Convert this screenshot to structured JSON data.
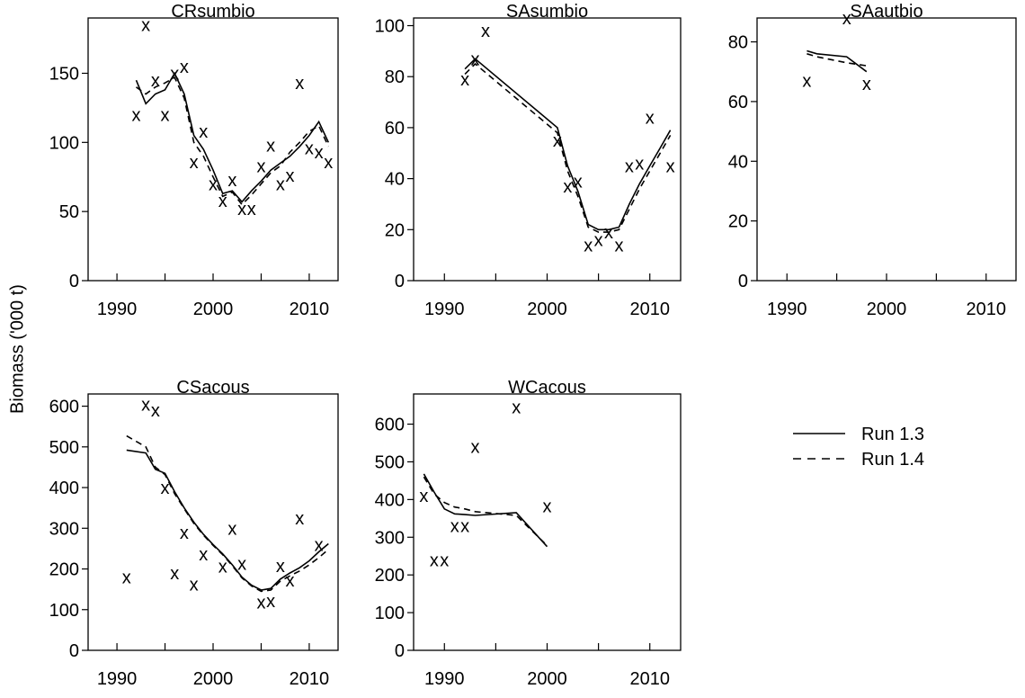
{
  "ylabel": "Biomass ('000 t)",
  "legend": {
    "placement": "right",
    "entries": [
      {
        "label": "Run 1.3",
        "style": "solid"
      },
      {
        "label": "Run 1.4",
        "style": "dashed"
      }
    ]
  },
  "chart_data": [
    {
      "type": "line",
      "title": "CRsumbio",
      "xlim": [
        1987,
        2013
      ],
      "ylim": [
        0,
        190
      ],
      "xticks": [
        1990,
        2000,
        2010
      ],
      "yticks": [
        0,
        50,
        100,
        150
      ],
      "observed": {
        "x": [
          1992,
          1993,
          1994,
          1995,
          1996,
          1997,
          1998,
          1999,
          2000,
          2001,
          2002,
          2003,
          2004,
          2005,
          2006,
          2007,
          2008,
          2009,
          2010,
          2011,
          2012
        ],
        "y": [
          120,
          185,
          145,
          120,
          150,
          155,
          86,
          108,
          70,
          58,
          73,
          52,
          52,
          83,
          98,
          70,
          76,
          143,
          96,
          93,
          86
        ]
      },
      "series": [
        {
          "name": "Run 1.3",
          "x": [
            1992,
            1993,
            1994,
            1995,
            1996,
            1997,
            1998,
            1999,
            2000,
            2001,
            2002,
            2003,
            2004,
            2005,
            2006,
            2007,
            2008,
            2009,
            2010,
            2011,
            2012
          ],
          "y": [
            145,
            128,
            135,
            138,
            150,
            135,
            105,
            95,
            80,
            63,
            65,
            57,
            65,
            72,
            80,
            85,
            90,
            97,
            105,
            115,
            100
          ]
        },
        {
          "name": "Run 1.4",
          "x": [
            1992,
            1993,
            1994,
            1995,
            1996,
            1997,
            1998,
            1999,
            2000,
            2001,
            2002,
            2003,
            2004,
            2005,
            2006,
            2007,
            2008,
            2009,
            2010,
            2011,
            2012
          ],
          "y": [
            140,
            135,
            140,
            143,
            147,
            132,
            100,
            90,
            75,
            61,
            64,
            55,
            62,
            70,
            78,
            83,
            93,
            100,
            108,
            112,
            97
          ]
        }
      ]
    },
    {
      "type": "line",
      "title": "SAsumbio",
      "xlim": [
        1987,
        2013
      ],
      "ylim": [
        0,
        103
      ],
      "xticks": [
        1990,
        2000,
        2010
      ],
      "yticks": [
        0,
        20,
        40,
        60,
        80,
        100
      ],
      "observed": {
        "x": [
          1992,
          1993,
          1994,
          2001,
          2002,
          2003,
          2004,
          2005,
          2006,
          2007,
          2008,
          2009,
          2010,
          2012
        ],
        "y": [
          79,
          87,
          98,
          55,
          37,
          39,
          14,
          16,
          19,
          14,
          45,
          46,
          64,
          45
        ]
      },
      "series": [
        {
          "name": "Run 1.3",
          "x": [
            1992,
            1993,
            2001,
            2002,
            2003,
            2004,
            2005,
            2006,
            2007,
            2008,
            2009,
            2010,
            2011,
            2012
          ],
          "y": [
            83,
            87,
            60,
            45,
            35,
            22,
            20,
            20,
            21,
            30,
            38,
            45,
            52,
            59
          ]
        },
        {
          "name": "Run 1.4",
          "x": [
            1992,
            1993,
            2001,
            2002,
            2003,
            2004,
            2005,
            2006,
            2007,
            2008,
            2009,
            2010,
            2011,
            2012
          ],
          "y": [
            81,
            85,
            58,
            43,
            33,
            21,
            19,
            19,
            20,
            28,
            36,
            43,
            50,
            57
          ]
        }
      ]
    },
    {
      "type": "line",
      "title": "SAautbio",
      "xlim": [
        1987,
        2013
      ],
      "ylim": [
        0,
        88
      ],
      "xticks": [
        1990,
        2000,
        2010
      ],
      "yticks": [
        0,
        20,
        40,
        60,
        80
      ],
      "observed": {
        "x": [
          1992,
          1996,
          1998
        ],
        "y": [
          67,
          88,
          66
        ]
      },
      "series": [
        {
          "name": "Run 1.3",
          "x": [
            1992,
            1993,
            1996,
            1998
          ],
          "y": [
            77,
            76,
            75,
            70
          ]
        },
        {
          "name": "Run 1.4",
          "x": [
            1992,
            1993,
            1996,
            1998
          ],
          "y": [
            76,
            75,
            73,
            72
          ]
        }
      ]
    },
    {
      "type": "line",
      "title": "CSacous",
      "xlim": [
        1987,
        2013
      ],
      "ylim": [
        0,
        630
      ],
      "xticks": [
        1990,
        2000,
        2010
      ],
      "yticks": [
        0,
        100,
        200,
        300,
        400,
        500,
        600
      ],
      "observed": {
        "x": [
          1991,
          1993,
          1994,
          1995,
          1996,
          1997,
          1998,
          1999,
          2001,
          2002,
          2003,
          2005,
          2006,
          2007,
          2008,
          2009,
          2011
        ],
        "y": [
          180,
          605,
          590,
          400,
          190,
          290,
          163,
          237,
          207,
          300,
          213,
          118,
          122,
          208,
          172,
          325,
          260
        ]
      },
      "series": [
        {
          "name": "Run 1.3",
          "x": [
            1991,
            1993,
            1994,
            1995,
            1996,
            1997,
            1998,
            1999,
            2000,
            2001,
            2002,
            2003,
            2004,
            2005,
            2006,
            2007,
            2008,
            2009,
            2010,
            2011,
            2012
          ],
          "y": [
            492,
            485,
            445,
            435,
            390,
            350,
            315,
            285,
            260,
            237,
            210,
            180,
            160,
            148,
            152,
            175,
            190,
            203,
            220,
            242,
            262
          ]
        },
        {
          "name": "Run 1.4",
          "x": [
            1991,
            1993,
            1994,
            1995,
            1996,
            1997,
            1998,
            1999,
            2000,
            2001,
            2002,
            2003,
            2004,
            2005,
            2006,
            2007,
            2008,
            2009,
            2010,
            2011,
            2012
          ],
          "y": [
            527,
            500,
            450,
            432,
            385,
            348,
            312,
            283,
            258,
            235,
            208,
            178,
            158,
            145,
            148,
            170,
            183,
            195,
            210,
            228,
            248
          ]
        }
      ]
    },
    {
      "type": "line",
      "title": "WCacous",
      "xlim": [
        1987,
        2013
      ],
      "ylim": [
        0,
        680
      ],
      "xticks": [
        1990,
        2000,
        2010
      ],
      "yticks": [
        0,
        100,
        200,
        300,
        400,
        500,
        600
      ],
      "observed": {
        "x": [
          1988,
          1989,
          1990,
          1991,
          1992,
          1993,
          1997,
          2000
        ],
        "y": [
          410,
          240,
          240,
          330,
          330,
          540,
          645,
          383
        ]
      },
      "series": [
        {
          "name": "Run 1.3",
          "x": [
            1988,
            1989,
            1990,
            1991,
            1992,
            1993,
            1997,
            2000
          ],
          "y": [
            468,
            420,
            375,
            362,
            360,
            358,
            365,
            275
          ]
        },
        {
          "name": "Run 1.4",
          "x": [
            1988,
            1989,
            1990,
            1991,
            1992,
            1993,
            1997,
            2000
          ],
          "y": [
            460,
            415,
            392,
            380,
            375,
            368,
            358,
            278
          ]
        }
      ]
    }
  ]
}
